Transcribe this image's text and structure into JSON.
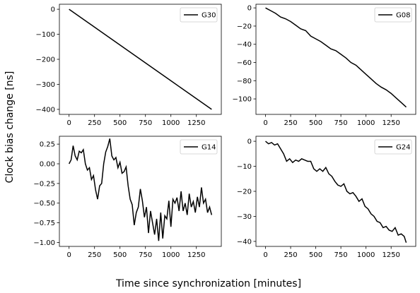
{
  "figure": {
    "xlabel": "Time since synchronization [minutes]",
    "ylabel": "Clock bias change [ns]"
  },
  "chart_data": [
    {
      "type": "line",
      "legend_position": "top-right",
      "series": [
        {
          "name": "G30",
          "x": [
            0,
            100,
            200,
            300,
            400,
            500,
            600,
            700,
            800,
            900,
            1000,
            1100,
            1200,
            1300,
            1400
          ],
          "y": [
            0,
            -28.6,
            -57.1,
            -85.7,
            -114.3,
            -142.9,
            -171.4,
            -200,
            -228.6,
            -257.1,
            -285.7,
            -314.3,
            -342.9,
            -371.4,
            -400
          ]
        }
      ],
      "xlim": [
        -95,
        1495
      ],
      "ylim": [
        -420,
        20
      ],
      "xticks": [
        0,
        250,
        500,
        750,
        1000,
        1250
      ],
      "yticks": [
        0,
        -100,
        -200,
        -300,
        -400
      ],
      "xtick_labels": [
        "0",
        "250",
        "500",
        "750",
        "1000",
        "1250"
      ],
      "ytick_labels": [
        "0",
        "−100",
        "−200",
        "−300",
        "−400"
      ]
    },
    {
      "type": "line",
      "legend_position": "top-right",
      "series": [
        {
          "name": "G08",
          "x": [
            0,
            50,
            100,
            150,
            200,
            250,
            300,
            350,
            400,
            450,
            500,
            550,
            600,
            650,
            700,
            750,
            800,
            850,
            900,
            950,
            1000,
            1050,
            1100,
            1150,
            1200,
            1250,
            1300,
            1350,
            1400
          ],
          "y": [
            0,
            -3,
            -6,
            -10,
            -12,
            -15,
            -19,
            -23,
            -25,
            -31,
            -34,
            -37,
            -41,
            -45,
            -47,
            -51,
            -55,
            -60,
            -63,
            -68,
            -73,
            -78,
            -83,
            -87,
            -90,
            -94,
            -99,
            -104,
            -109
          ]
        }
      ],
      "xlim": [
        -95,
        1495
      ],
      "ylim": [
        -117,
        4
      ],
      "xticks": [
        0,
        250,
        500,
        750,
        1000,
        1250
      ],
      "yticks": [
        0,
        -20,
        -40,
        -60,
        -80,
        -100
      ],
      "xtick_labels": [
        "0",
        "250",
        "500",
        "750",
        "1000",
        "1250"
      ],
      "ytick_labels": [
        "0",
        "−20",
        "−40",
        "−60",
        "−80",
        "−100"
      ]
    },
    {
      "type": "line",
      "legend_position": "top-right",
      "series": [
        {
          "name": "G14",
          "x": [
            0,
            20,
            40,
            60,
            80,
            100,
            120,
            140,
            160,
            180,
            200,
            220,
            240,
            260,
            280,
            300,
            320,
            340,
            360,
            380,
            400,
            420,
            440,
            460,
            480,
            500,
            520,
            540,
            560,
            580,
            600,
            620,
            640,
            660,
            680,
            700,
            720,
            740,
            760,
            780,
            800,
            820,
            840,
            860,
            880,
            900,
            920,
            940,
            960,
            980,
            1000,
            1020,
            1040,
            1060,
            1080,
            1100,
            1120,
            1140,
            1160,
            1180,
            1200,
            1220,
            1240,
            1260,
            1280,
            1300,
            1320,
            1340,
            1360,
            1380,
            1400
          ],
          "y": [
            0.0,
            0.05,
            0.23,
            0.1,
            0.05,
            0.16,
            0.14,
            0.18,
            0.0,
            -0.08,
            -0.05,
            -0.2,
            -0.15,
            -0.33,
            -0.45,
            -0.28,
            -0.25,
            0.0,
            0.15,
            0.22,
            0.32,
            0.1,
            0.05,
            0.08,
            -0.05,
            0.02,
            -0.12,
            -0.1,
            -0.04,
            -0.28,
            -0.45,
            -0.52,
            -0.78,
            -0.62,
            -0.55,
            -0.32,
            -0.47,
            -0.68,
            -0.55,
            -0.88,
            -0.6,
            -0.75,
            -0.9,
            -0.7,
            -0.98,
            -0.62,
            -0.95,
            -0.66,
            -0.7,
            -0.47,
            -0.8,
            -0.45,
            -0.5,
            -0.43,
            -0.6,
            -0.35,
            -0.6,
            -0.5,
            -0.65,
            -0.38,
            -0.55,
            -0.48,
            -0.62,
            -0.42,
            -0.55,
            -0.3,
            -0.5,
            -0.45,
            -0.62,
            -0.55,
            -0.65
          ]
        }
      ],
      "xlim": [
        -95,
        1495
      ],
      "ylim": [
        -1.05,
        0.35
      ],
      "xticks": [
        0,
        250,
        500,
        750,
        1000,
        1250
      ],
      "yticks": [
        0.25,
        0.0,
        -0.25,
        -0.5,
        -0.75,
        -1.0
      ],
      "xtick_labels": [
        "0",
        "250",
        "500",
        "750",
        "1000",
        "1250"
      ],
      "ytick_labels": [
        "0.25",
        "0.00",
        "−0.25",
        "−0.50",
        "−0.75",
        "−1.00"
      ]
    },
    {
      "type": "line",
      "legend_position": "top-right",
      "series": [
        {
          "name": "G24",
          "x": [
            0,
            30,
            60,
            90,
            120,
            150,
            180,
            210,
            240,
            270,
            300,
            330,
            360,
            390,
            420,
            450,
            480,
            510,
            540,
            570,
            600,
            630,
            660,
            690,
            720,
            750,
            780,
            810,
            840,
            870,
            900,
            930,
            960,
            990,
            1020,
            1050,
            1080,
            1110,
            1140,
            1170,
            1200,
            1230,
            1260,
            1290,
            1320,
            1350,
            1380,
            1400
          ],
          "y": [
            0,
            -1,
            -0.5,
            -1.5,
            -1,
            -3,
            -5,
            -8,
            -7,
            -8.5,
            -7.5,
            -8,
            -7,
            -7.5,
            -8,
            -8,
            -11,
            -12,
            -11,
            -12,
            -10.5,
            -13,
            -14,
            -16,
            -17.5,
            -18,
            -17,
            -20,
            -21,
            -20.5,
            -22,
            -24,
            -23,
            -26,
            -27,
            -29,
            -30,
            -32,
            -32.5,
            -34.5,
            -34,
            -35.5,
            -36,
            -34.5,
            -37.5,
            -37,
            -38,
            -40.5
          ]
        }
      ],
      "xlim": [
        -95,
        1495
      ],
      "ylim": [
        -42,
        2
      ],
      "xticks": [
        0,
        250,
        500,
        750,
        1000,
        1250
      ],
      "yticks": [
        0,
        -10,
        -20,
        -30,
        -40
      ],
      "xtick_labels": [
        "0",
        "250",
        "500",
        "750",
        "1000",
        "1250"
      ],
      "ytick_labels": [
        "0",
        "−10",
        "−20",
        "−30",
        "−40"
      ]
    }
  ]
}
